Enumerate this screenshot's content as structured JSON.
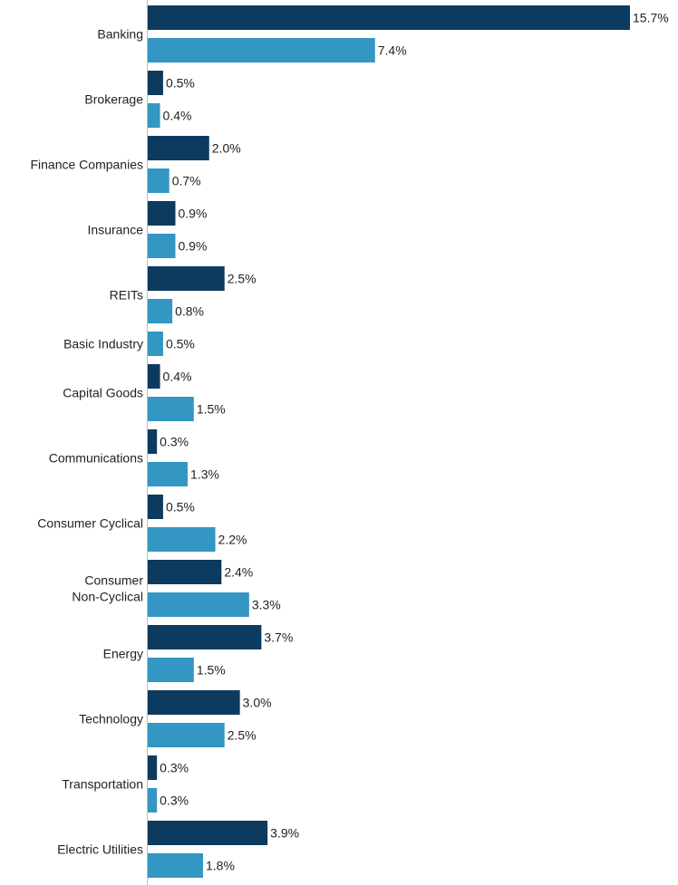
{
  "chart_data": {
    "type": "bar",
    "orientation": "horizontal",
    "categories": [
      [
        "Banking"
      ],
      [
        "Brokerage"
      ],
      [
        "Finance Companies"
      ],
      [
        "Insurance"
      ],
      [
        "REITs"
      ],
      [
        "Basic Industry"
      ],
      [
        "Capital Goods"
      ],
      [
        "Communications"
      ],
      [
        "Consumer Cyclical"
      ],
      [
        "Consumer",
        "Non-Cyclical"
      ],
      [
        "Energy"
      ],
      [
        "Technology"
      ],
      [
        "Transportation"
      ],
      [
        "Electric Utilities"
      ]
    ],
    "series": [
      {
        "color": "#0d3a5f",
        "values": [
          15.7,
          0.5,
          2.0,
          0.9,
          2.5,
          null,
          0.4,
          0.3,
          0.5,
          2.4,
          3.7,
          3.0,
          0.3,
          3.9
        ],
        "labels": [
          "15.7%",
          "0.5%",
          "2.0%",
          "0.9%",
          "2.5%",
          null,
          "0.4%",
          "0.3%",
          "0.5%",
          "2.4%",
          "3.7%",
          "3.0%",
          "0.3%",
          "3.9%"
        ]
      },
      {
        "color": "#3396c3",
        "values": [
          7.4,
          0.4,
          0.7,
          0.9,
          0.8,
          0.5,
          1.5,
          1.3,
          2.2,
          3.3,
          1.5,
          2.5,
          0.3,
          1.8
        ],
        "labels": [
          "7.4%",
          "0.4%",
          "0.7%",
          "0.9%",
          "0.8%",
          "0.5%",
          "1.5%",
          "1.3%",
          "2.2%",
          "3.3%",
          "1.5%",
          "2.5%",
          "0.3%",
          "1.8%"
        ]
      }
    ],
    "xlim": [
      0,
      15.7
    ],
    "grid": false,
    "legend": "none"
  }
}
